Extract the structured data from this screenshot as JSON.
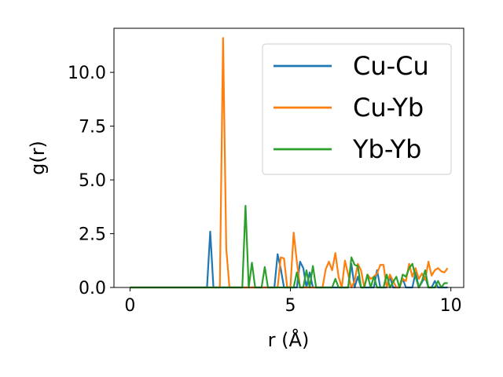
{
  "chart_data": {
    "type": "line",
    "xlabel": "r (Å)",
    "ylabel": "g(r)",
    "xlim": [
      -0.5,
      10.4
    ],
    "ylim": [
      0,
      12.05
    ],
    "xticks": [
      0,
      5,
      10
    ],
    "xtick_labels": [
      "0",
      "5",
      "10"
    ],
    "yticks": [
      0,
      2.5,
      5,
      7.5,
      10
    ],
    "ytick_labels": [
      "0.0",
      "2.5",
      "5.0",
      "7.5",
      "10.0"
    ],
    "grid": false,
    "legend_position": "top-right",
    "series": [
      {
        "name": "Cu-Cu",
        "color": "#1f77b4",
        "points": [
          [
            0,
            0
          ],
          [
            2.4,
            0
          ],
          [
            2.5,
            2.6
          ],
          [
            2.6,
            0
          ],
          [
            4.4,
            0
          ],
          [
            4.5,
            0
          ],
          [
            4.6,
            1.55
          ],
          [
            4.7,
            0.85
          ],
          [
            4.8,
            0
          ],
          [
            5.0,
            0
          ],
          [
            5.1,
            0
          ],
          [
            5.2,
            0
          ],
          [
            5.3,
            1.2
          ],
          [
            5.4,
            0.9
          ],
          [
            5.5,
            0
          ],
          [
            5.6,
            0.7
          ],
          [
            5.7,
            0
          ],
          [
            5.8,
            0
          ],
          [
            6.8,
            0
          ],
          [
            6.9,
            1.1
          ],
          [
            7.0,
            0
          ],
          [
            7.1,
            0.5
          ],
          [
            7.2,
            0
          ],
          [
            7.6,
            0
          ],
          [
            7.7,
            0.8
          ],
          [
            7.8,
            0
          ],
          [
            8.0,
            0
          ],
          [
            8.1,
            0.5
          ],
          [
            8.2,
            0
          ],
          [
            8.4,
            0
          ],
          [
            8.5,
            0.4
          ],
          [
            8.6,
            0
          ],
          [
            8.8,
            0
          ],
          [
            8.9,
            0.7
          ],
          [
            9.0,
            0
          ],
          [
            9.2,
            0.5
          ],
          [
            9.3,
            0
          ],
          [
            9.4,
            0
          ],
          [
            9.5,
            0.3
          ],
          [
            9.6,
            0
          ],
          [
            9.9,
            0
          ]
        ]
      },
      {
        "name": "Cu-Yb",
        "color": "#ff7f0e",
        "points": [
          [
            0,
            0
          ],
          [
            2.7,
            0
          ],
          [
            2.8,
            0
          ],
          [
            2.9,
            11.6
          ],
          [
            3.0,
            1.8
          ],
          [
            3.1,
            0
          ],
          [
            4.6,
            0
          ],
          [
            4.7,
            1.4
          ],
          [
            4.8,
            1.35
          ],
          [
            4.9,
            0
          ],
          [
            5.0,
            0
          ],
          [
            5.1,
            2.55
          ],
          [
            5.2,
            1.2
          ],
          [
            5.3,
            0
          ],
          [
            5.5,
            0
          ],
          [
            5.6,
            0
          ],
          [
            6.0,
            0
          ],
          [
            6.1,
            0.85
          ],
          [
            6.2,
            1.2
          ],
          [
            6.3,
            0.8
          ],
          [
            6.4,
            1.6
          ],
          [
            6.5,
            0.5
          ],
          [
            6.6,
            0
          ],
          [
            6.7,
            1.25
          ],
          [
            6.8,
            0.6
          ],
          [
            6.9,
            0
          ],
          [
            7.0,
            0.3
          ],
          [
            7.1,
            1.1
          ],
          [
            7.2,
            0.8
          ],
          [
            7.3,
            0
          ],
          [
            7.4,
            0.6
          ],
          [
            7.5,
            0.4
          ],
          [
            7.6,
            0.5
          ],
          [
            7.7,
            0.65
          ],
          [
            7.8,
            1.05
          ],
          [
            7.9,
            1.05
          ],
          [
            8.0,
            0
          ],
          [
            8.1,
            0.6
          ],
          [
            8.2,
            0.3
          ],
          [
            8.3,
            0
          ],
          [
            8.4,
            0
          ],
          [
            8.5,
            0.4
          ],
          [
            8.6,
            0.3
          ],
          [
            8.7,
            1.1
          ],
          [
            8.8,
            0.5
          ],
          [
            8.9,
            0.9
          ],
          [
            9.0,
            0.4
          ],
          [
            9.1,
            0.65
          ],
          [
            9.2,
            0.35
          ],
          [
            9.3,
            1.2
          ],
          [
            9.4,
            0.55
          ],
          [
            9.5,
            0.8
          ],
          [
            9.6,
            0.9
          ],
          [
            9.7,
            0.75
          ],
          [
            9.8,
            0.7
          ],
          [
            9.9,
            0.9
          ]
        ]
      },
      {
        "name": "Yb-Yb",
        "color": "#2ca02c",
        "points": [
          [
            0,
            0
          ],
          [
            3.4,
            0
          ],
          [
            3.5,
            0
          ],
          [
            3.6,
            3.8
          ],
          [
            3.7,
            0
          ],
          [
            3.8,
            1.15
          ],
          [
            3.9,
            0
          ],
          [
            4.1,
            0
          ],
          [
            4.2,
            0.95
          ],
          [
            4.3,
            0
          ],
          [
            5.1,
            0
          ],
          [
            5.2,
            0.7
          ],
          [
            5.3,
            0
          ],
          [
            5.4,
            0
          ],
          [
            5.5,
            0.8
          ],
          [
            5.6,
            0
          ],
          [
            5.7,
            1.0
          ],
          [
            5.8,
            0
          ],
          [
            6.3,
            0
          ],
          [
            6.4,
            0.4
          ],
          [
            6.5,
            0
          ],
          [
            6.8,
            0
          ],
          [
            6.9,
            1.4
          ],
          [
            7.0,
            1.05
          ],
          [
            7.1,
            1.0
          ],
          [
            7.2,
            0
          ],
          [
            7.3,
            0
          ],
          [
            7.4,
            0.6
          ],
          [
            7.5,
            0
          ],
          [
            7.6,
            0.5
          ],
          [
            7.7,
            0
          ],
          [
            7.9,
            0
          ],
          [
            8.0,
            0.6
          ],
          [
            8.1,
            0
          ],
          [
            8.3,
            0.5
          ],
          [
            8.4,
            0
          ],
          [
            8.5,
            0.6
          ],
          [
            8.6,
            0.5
          ],
          [
            8.7,
            0.9
          ],
          [
            8.8,
            1.1
          ],
          [
            8.9,
            0.5
          ],
          [
            9.0,
            0
          ],
          [
            9.1,
            0.3
          ],
          [
            9.2,
            0.8
          ],
          [
            9.3,
            0
          ],
          [
            9.5,
            0
          ],
          [
            9.6,
            0.3
          ],
          [
            9.7,
            0
          ],
          [
            9.8,
            0.2
          ],
          [
            9.9,
            0.2
          ]
        ]
      }
    ]
  }
}
